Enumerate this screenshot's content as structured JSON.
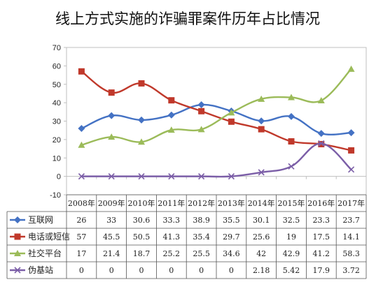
{
  "colors": {
    "series_1": "#4472C4",
    "series_2": "#C0392B",
    "series_3": "#9BBB59",
    "series_4": "#7B5EA7"
  },
  "chart_data": {
    "type": "line",
    "title": "线上方式实施的诈骗罪案件历年占比情况",
    "categories": [
      "2008年",
      "2009年",
      "2010年",
      "2011年",
      "2012年",
      "2013年",
      "2014年",
      "2015年",
      "2016年",
      "2017年"
    ],
    "ylim": [
      -10,
      70
    ],
    "yticks": [
      -10,
      0,
      10,
      20,
      30,
      40,
      50,
      60,
      70
    ],
    "grid": false,
    "legend": "data-table-left",
    "series": [
      {
        "name": "互联网",
        "color": "#4472C4",
        "marker": "diamond",
        "values": [
          26,
          33,
          30.6,
          33.3,
          38.9,
          35.5,
          30.1,
          32.5,
          23.3,
          23.7
        ]
      },
      {
        "name": "电话或短信",
        "color": "#C0392B",
        "marker": "square",
        "values": [
          57,
          45.5,
          50.5,
          41.3,
          35.4,
          29.7,
          25.6,
          19,
          17.5,
          14.1
        ]
      },
      {
        "name": "社交平台",
        "color": "#9BBB59",
        "marker": "triangle",
        "values": [
          17,
          21.4,
          18.7,
          25.2,
          25.5,
          34.6,
          42,
          42.9,
          41.2,
          58.3
        ]
      },
      {
        "name": "伪基站",
        "color": "#7B5EA7",
        "marker": "x",
        "values": [
          0,
          0,
          0,
          0,
          0,
          0,
          2.18,
          5.42,
          17.9,
          3.72
        ]
      }
    ]
  }
}
